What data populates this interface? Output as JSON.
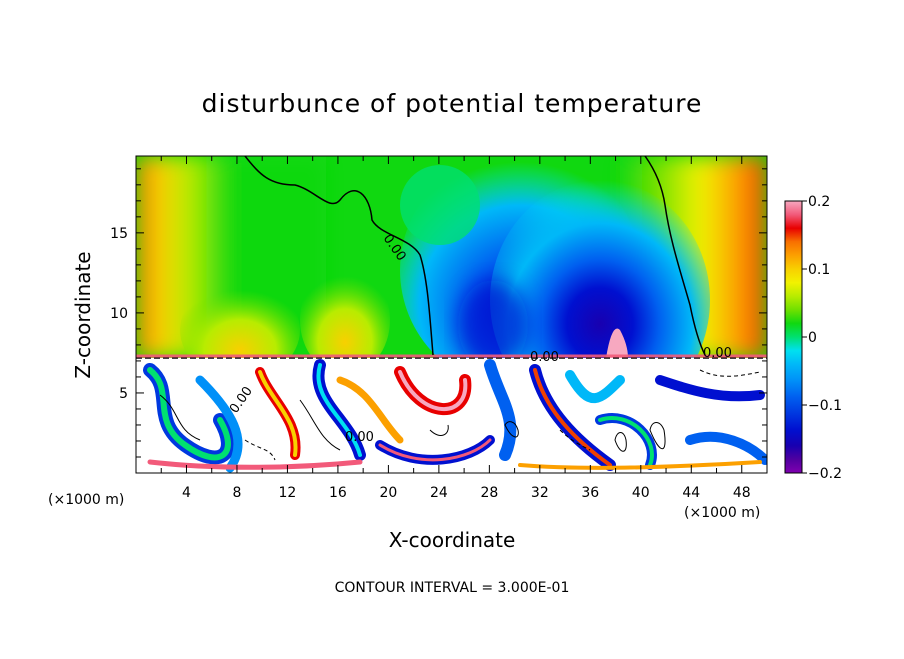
{
  "chart_data": {
    "type": "heatmap",
    "title": "disturbunce of potential temperature",
    "xlabel": "X-coordinate",
    "ylabel": "Z-coordinate",
    "x_unit": "(×1000 m)",
    "y_unit": "(×1000 m)",
    "xlim": [
      0,
      50
    ],
    "ylim": [
      0,
      19.8
    ],
    "x_ticks": [
      4,
      8,
      12,
      16,
      20,
      24,
      28,
      32,
      36,
      40,
      44,
      48
    ],
    "y_ticks": [
      5,
      10,
      15
    ],
    "colorbar": {
      "min": -0.2,
      "max": 0.2,
      "ticks": [
        0.2,
        0.1,
        0,
        -0.1,
        -0.2
      ],
      "tick_labels": [
        "0.2",
        "0.1",
        "0",
        "−0.1",
        "−0.2"
      ],
      "colors": [
        "#f7a8c0",
        "#f25a7a",
        "#e80000",
        "#f04000",
        "#f87000",
        "#fca000",
        "#f8d000",
        "#f2f200",
        "#b8ec00",
        "#70e000",
        "#10d810",
        "#00e070",
        "#00e8c0",
        "#00e0f0",
        "#00b8f8",
        "#0090f8",
        "#0060f0",
        "#0038e0",
        "#0010d0",
        "#1800b0",
        "#5000a0",
        "#8000b0"
      ]
    },
    "contour_interval_text": "CONTOUR INTERVAL = 3.000E-01",
    "contour_labels": [
      "0.00",
      "0.00",
      "0.00",
      "0.00",
      "0.00"
    ]
  }
}
